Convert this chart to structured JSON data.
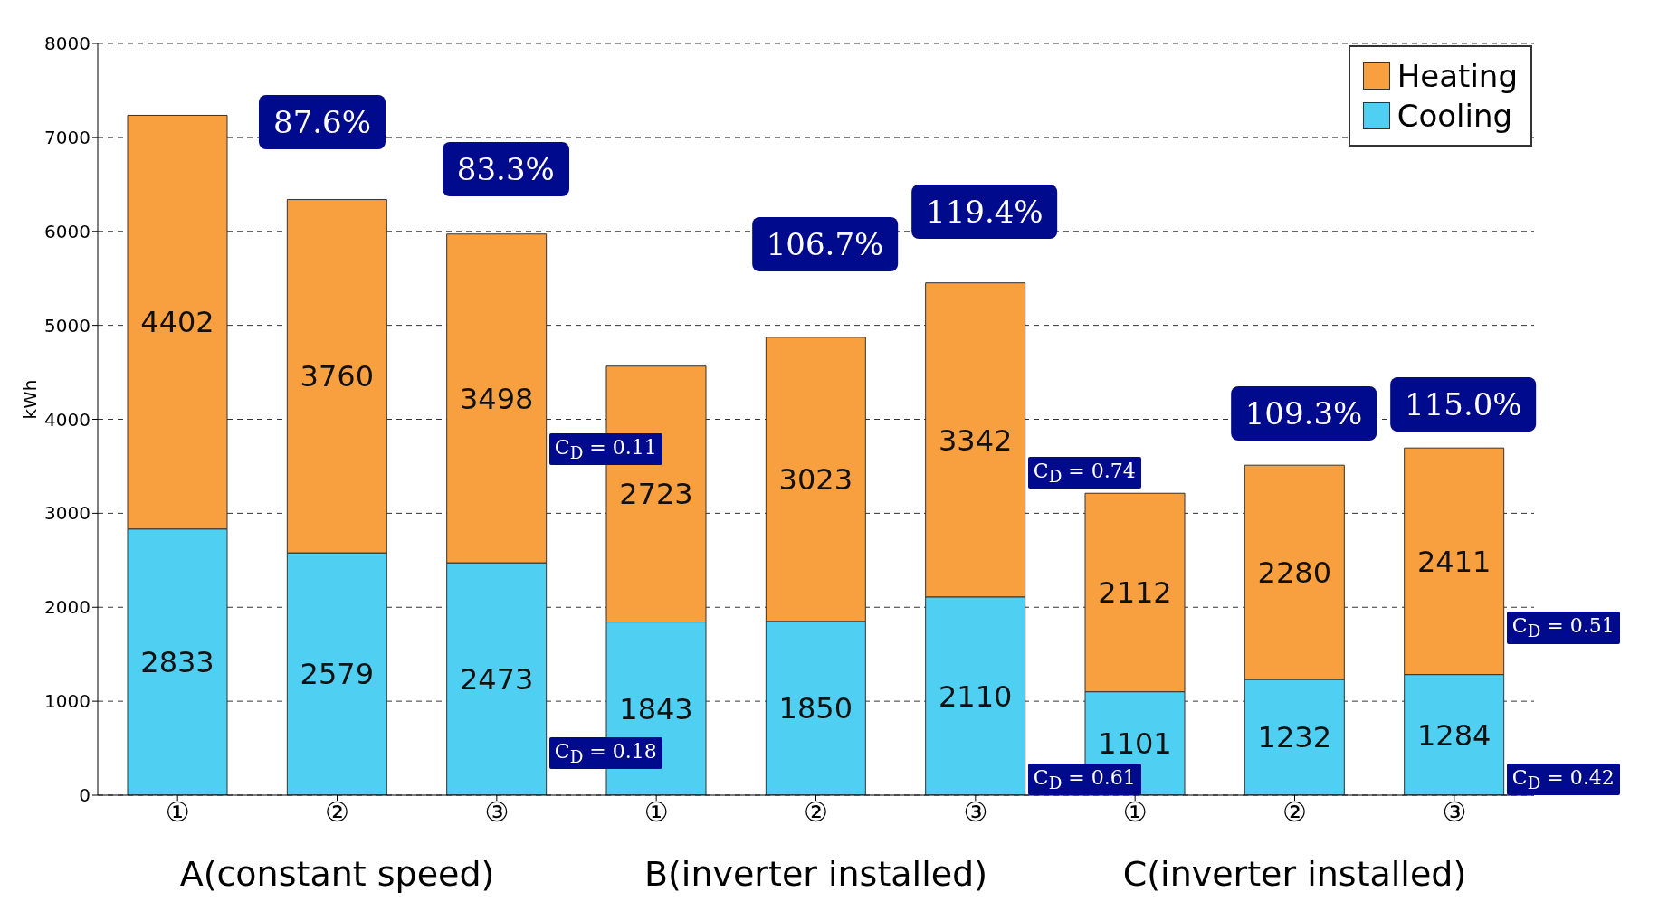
{
  "chart_data": {
    "type": "bar",
    "stacked": true,
    "ylabel": "kWh",
    "categories": [
      "①",
      "②",
      "③",
      "①",
      "②",
      "③",
      "①",
      "②",
      "③"
    ],
    "series": [
      {
        "name": "Cooling",
        "color": "#4fd0f2",
        "values": [
          2833,
          2579,
          2473,
          1843,
          1850,
          2110,
          1101,
          1232,
          1284
        ]
      },
      {
        "name": "Heating",
        "color": "#f8a040",
        "values": [
          4402,
          3760,
          3498,
          2723,
          3023,
          3342,
          2112,
          2280,
          2411
        ]
      }
    ],
    "ylim": [
      0,
      8000
    ],
    "yticks": [
      0,
      1000,
      2000,
      3000,
      4000,
      5000,
      6000,
      7000,
      8000
    ],
    "grid": "y",
    "legend": "top right",
    "data_labels": true,
    "annotations": [
      "A(constant speed)",
      "B(inverter installed)",
      "C(inverter installed)",
      "87.6%",
      "83.3%",
      "106.7%",
      "119.4%",
      "109.3%",
      "115.0%",
      "C$_{D}$ = 0.11",
      "C$_{D}$ = 0.18",
      "C$_{D}$ = 0.74",
      "C$_{D}$ = 0.61",
      "C$_{D}$ = 0.51",
      "C$_{D}$ = 0.42"
    ]
  }
}
